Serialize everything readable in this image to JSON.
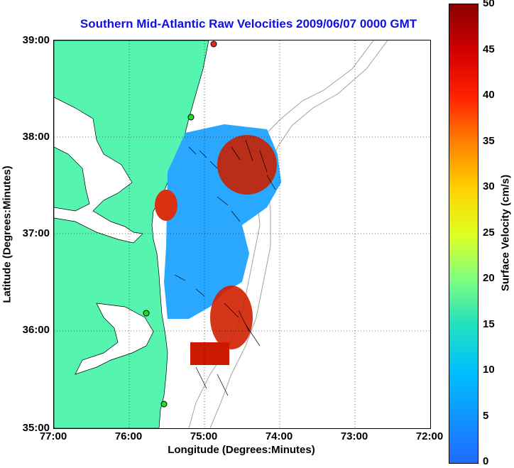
{
  "title": "Southern Mid-Atlantic Raw Velocities 2009/06/07 0000 GMT",
  "x_axis": {
    "label": "Longitude (Degrees:Minutes)",
    "ticks": [
      "77:00",
      "76:00",
      "75:00",
      "74:00",
      "73:00",
      "72:00"
    ]
  },
  "y_axis": {
    "label": "Latitude (Degrees:Minutes)",
    "ticks": [
      "39:00",
      "38:00",
      "37:00",
      "36:00",
      "35:00"
    ]
  },
  "colorbar": {
    "label": "Surface Velocity (cm/s)",
    "ticks": [
      "50",
      "45",
      "40",
      "35",
      "30",
      "25",
      "20",
      "15",
      "10",
      "5",
      "0"
    ],
    "range": [
      0,
      50
    ]
  },
  "colors": {
    "land": "#55f5b0",
    "title": "#1010e0",
    "bathymetry": "#a0a0a0",
    "station": "#22dd22",
    "station_alt": "#ee2222"
  },
  "map_extent": {
    "lon": [
      -77,
      -72
    ],
    "lat": [
      35,
      39
    ]
  },
  "velocity_hotspots_cm_s": [
    {
      "region": "offshore-upper",
      "speed": 45
    },
    {
      "region": "nearshore-upper",
      "speed": 42
    },
    {
      "region": "southern-lower",
      "speed": 47
    }
  ]
}
